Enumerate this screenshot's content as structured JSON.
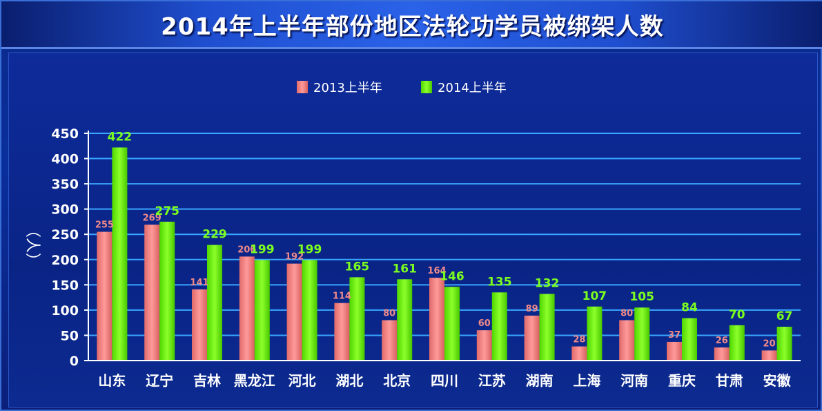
{
  "chart_data": {
    "type": "bar",
    "title": "2014年上半年部份地区法轮功学员被绑架人数",
    "ylabel": "（人）",
    "xlabel": "",
    "ylim": [
      0,
      450
    ],
    "yticks": [
      0,
      50,
      100,
      150,
      200,
      250,
      300,
      350,
      400,
      450
    ],
    "categories": [
      "山东",
      "辽宁",
      "吉林",
      "黑龙江",
      "河北",
      "湖北",
      "北京",
      "四川",
      "江苏",
      "湖南",
      "上海",
      "河南",
      "重庆",
      "甘肃",
      "安徽"
    ],
    "series": [
      {
        "name": "2013上半年",
        "color": "#f08080",
        "values": [
          255,
          269,
          141,
          206,
          192,
          114,
          80,
          164,
          60,
          89,
          28,
          80,
          37,
          26,
          20
        ]
      },
      {
        "name": "2014上半年",
        "color": "#66ff00",
        "values": [
          422,
          275,
          229,
          199,
          199,
          165,
          161,
          146,
          135,
          132,
          107,
          105,
          84,
          70,
          67
        ]
      }
    ],
    "grid": true,
    "legend_position": "top-center"
  }
}
